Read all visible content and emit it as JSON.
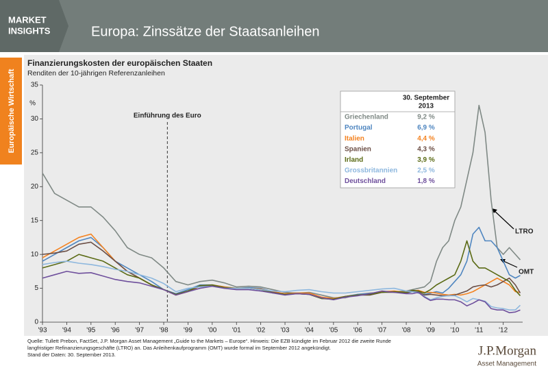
{
  "header": {
    "brand": [
      "MARKET",
      "INSIGHTS"
    ],
    "title": "Europa: Zinssätze der Staatsanleihen"
  },
  "side_tab": "Europäische Wirtschaft",
  "footnote": [
    "Quelle: Tullett Prebon, FactSet, J.P. Morgan Asset Management „Guide to the Markets – Europe“. Hinweis: Die EZB kündigte im Februar 2012 die zweite Runde",
    "langfristiger Refinanzierungsgeschäfte (LTRO) an. Das Anleihenkaufprogramm (OMT) wurde formal im September 2012 angekündigt.",
    "Stand der Daten: 30. September 2013."
  ],
  "logo": {
    "name": "J.P.Morgan",
    "sub": "Asset Management"
  },
  "chart_data": {
    "type": "line",
    "title": "Finanzierungskosten der europäischen Staaten",
    "subtitle": "Renditen der 10-jährigen Referenzanleihen",
    "y_label": "%",
    "x": [
      1993,
      1993.5,
      1994,
      1994.5,
      1995,
      1995.5,
      1996,
      1996.5,
      1997,
      1997.5,
      1998,
      1998.5,
      1999,
      1999.5,
      2000,
      2000.5,
      2001,
      2001.5,
      2002,
      2002.5,
      2003,
      2003.5,
      2004,
      2004.5,
      2005,
      2005.5,
      2006,
      2006.5,
      2007,
      2007.5,
      2008,
      2008.25,
      2008.5,
      2008.75,
      2009,
      2009.25,
      2009.5,
      2009.75,
      2010,
      2010.25,
      2010.5,
      2010.75,
      2011,
      2011.25,
      2011.5,
      2011.75,
      2012,
      2012.25,
      2012.5,
      2012.7
    ],
    "series": [
      {
        "name": "Griechenland",
        "color": "#7f8985",
        "values": [
          22,
          19,
          18,
          17,
          17,
          15.5,
          13.5,
          11,
          10,
          9.5,
          8,
          6,
          5.5,
          6,
          6.2,
          5.8,
          5.2,
          5.3,
          5.2,
          4.8,
          4.4,
          4.3,
          4.4,
          4,
          3.6,
          3.6,
          4.1,
          4.3,
          4.4,
          4.5,
          4.6,
          4.8,
          5,
          5.2,
          6,
          9,
          11,
          12,
          15,
          17,
          21,
          25,
          32,
          28,
          18,
          11,
          10,
          11,
          10,
          9.2
        ]
      },
      {
        "name": "Portugal",
        "color": "#4f86c0",
        "values": [
          9,
          10,
          11,
          12,
          12.5,
          11,
          9,
          8,
          7,
          6,
          4.8,
          4.2,
          4.8,
          5.5,
          5.5,
          5.2,
          5,
          5.1,
          5,
          4.5,
          4.2,
          4.3,
          4.2,
          3.6,
          3.5,
          3.8,
          4.1,
          4.2,
          4.4,
          4.5,
          4.3,
          4.5,
          4.3,
          4.1,
          4.3,
          4.5,
          4.3,
          5,
          6,
          7,
          9,
          13,
          14,
          12,
          12,
          11,
          9,
          7,
          6.5,
          6.9
        ]
      },
      {
        "name": "Italien",
        "color": "#f4821f",
        "values": [
          9.5,
          10.5,
          11.5,
          12.5,
          13,
          11,
          9,
          7.5,
          6.5,
          5.5,
          4.8,
          4,
          4.5,
          5.3,
          5.5,
          5.2,
          5,
          5,
          4.9,
          4.5,
          4.2,
          4.3,
          4.3,
          3.7,
          3.5,
          3.8,
          4,
          4.1,
          4.5,
          4.6,
          4.4,
          4.6,
          4.7,
          4.4,
          4.4,
          4.3,
          4.1,
          4,
          4.1,
          4,
          4.2,
          4.5,
          5,
          5.5,
          6,
          6.5,
          6,
          5.5,
          4.5,
          4.4
        ]
      },
      {
        "name": "Spanien",
        "color": "#6b4e45",
        "values": [
          10,
          10.2,
          10.5,
          11.5,
          11.8,
          10.5,
          9,
          7.5,
          6.5,
          5.5,
          4.8,
          4.1,
          4.6,
          5.3,
          5.4,
          5.1,
          5,
          5,
          4.8,
          4.4,
          4.1,
          4.2,
          4.1,
          3.5,
          3.4,
          3.8,
          4,
          4,
          4.4,
          4.4,
          4.3,
          4.6,
          4.5,
          4,
          4.1,
          4,
          3.9,
          3.9,
          4,
          4.3,
          4.6,
          5.2,
          5.4,
          5.5,
          5.2,
          5.5,
          6,
          6.5,
          5.5,
          4.3
        ]
      },
      {
        "name": "Irland",
        "color": "#5a6a14",
        "values": [
          8,
          8.5,
          9,
          10,
          9.5,
          9,
          8,
          7,
          6.5,
          5.5,
          4.8,
          4.1,
          4.6,
          5.4,
          5.5,
          5.1,
          5,
          5,
          4.8,
          4.3,
          4.1,
          4.2,
          4.1,
          3.5,
          3.4,
          3.8,
          4,
          4.1,
          4.4,
          4.5,
          4.4,
          4.7,
          4.6,
          4.3,
          4.8,
          5.5,
          6,
          6.5,
          7,
          9,
          12,
          9,
          8,
          8,
          7.5,
          7,
          6.5,
          6,
          4.7,
          3.9
        ]
      },
      {
        "name": "Grossbritannien",
        "color": "#8db7de",
        "values": [
          8.5,
          8.8,
          9,
          8.7,
          8.5,
          8.2,
          7.8,
          7.5,
          7,
          6.5,
          5.7,
          4.5,
          5,
          5.2,
          5.3,
          5,
          5,
          5,
          4.8,
          4.6,
          4.5,
          4.7,
          4.8,
          4.5,
          4.3,
          4.3,
          4.5,
          4.7,
          4.9,
          5,
          4.6,
          4.5,
          4.4,
          3.8,
          3.3,
          3.6,
          3.8,
          3.9,
          3.9,
          3.5,
          3,
          3.5,
          3.3,
          3.1,
          2.3,
          2.1,
          2,
          1.8,
          1.8,
          2.5
        ]
      },
      {
        "name": "Deutschland",
        "color": "#6e4f9c",
        "values": [
          6.5,
          7,
          7.5,
          7.2,
          7.3,
          6.8,
          6.3,
          6,
          5.8,
          5.3,
          4.8,
          4,
          4.5,
          5,
          5.3,
          5,
          4.8,
          4.8,
          4.6,
          4.3,
          4,
          4.2,
          4.1,
          3.6,
          3.3,
          3.7,
          3.9,
          4.2,
          4.6,
          4.4,
          4.2,
          4.2,
          4.4,
          3.7,
          3.2,
          3.4,
          3.4,
          3.3,
          3.3,
          3,
          2.4,
          2.8,
          3.3,
          3,
          2,
          1.8,
          1.8,
          1.4,
          1.5,
          1.8
        ]
      }
    ],
    "xlim": [
      1993,
      2012.8
    ],
    "xticks": [
      {
        "value": 1993,
        "label": "'93"
      },
      {
        "value": 1994,
        "label": "'94"
      },
      {
        "value": 1995,
        "label": "'95"
      },
      {
        "value": 1996,
        "label": "'96"
      },
      {
        "value": 1997,
        "label": "'97"
      },
      {
        "value": 1998,
        "label": "'98"
      },
      {
        "value": 1999,
        "label": "'99"
      },
      {
        "value": 2000,
        "label": "'00"
      },
      {
        "value": 2001,
        "label": "'01"
      },
      {
        "value": 2002,
        "label": "'02"
      },
      {
        "value": 2003,
        "label": "'03"
      },
      {
        "value": 2004,
        "label": "'04"
      },
      {
        "value": 2005,
        "label": "'05"
      },
      {
        "value": 2006,
        "label": "'06"
      },
      {
        "value": 2007,
        "label": "'07"
      },
      {
        "value": 2008,
        "label": "'08"
      },
      {
        "value": 2009,
        "label": "'09"
      },
      {
        "value": 2010,
        "label": "'10"
      },
      {
        "value": 2011,
        "label": "'11"
      },
      {
        "value": 2012,
        "label": "'12"
      }
    ],
    "ylim": [
      0,
      35
    ],
    "yticks": [
      0,
      5,
      10,
      15,
      20,
      25,
      30,
      35
    ],
    "grid": false,
    "annotations": [
      {
        "text": "Einführung des Euro",
        "x": 1998.15
      },
      {
        "text": "LTRO"
      },
      {
        "text": "OMT"
      }
    ],
    "table": {
      "header": [
        "30. September",
        "2013"
      ],
      "value_labels": [
        "9,2 %",
        "6,9 %",
        "4,4 %",
        "4,3 %",
        "3,9 %",
        "2,5 %",
        "1,8 %"
      ]
    }
  }
}
